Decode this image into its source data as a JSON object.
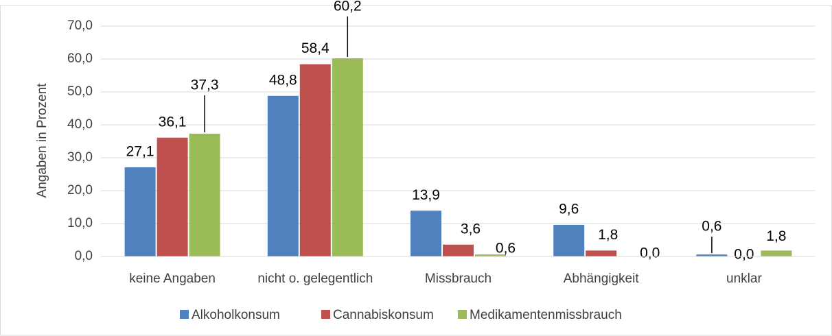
{
  "chart_data": {
    "type": "bar",
    "y_label": "Angaben in Prozent",
    "categories": [
      "keine Angaben",
      "nicht o. gelegentlich",
      "Missbrauch",
      "Abhängigkeit",
      "unklar"
    ],
    "series": [
      {
        "name": "Alkoholkonsum",
        "color": "#4f81bd",
        "values": [
          27.1,
          48.8,
          13.9,
          9.6,
          0.6
        ],
        "value_labels": [
          "27,1",
          "48,8",
          "13,9",
          "9,6",
          "0,6"
        ]
      },
      {
        "name": "Cannabiskonsum",
        "color": "#c0504d",
        "values": [
          36.1,
          58.4,
          3.6,
          1.8,
          0.0
        ],
        "value_labels": [
          "36,1",
          "58,4",
          "3,6",
          "1,8",
          "0,0"
        ]
      },
      {
        "name": "Medikamentenmissbrauch",
        "color": "#9bbb59",
        "values": [
          37.3,
          60.2,
          0.6,
          0.0,
          1.8
        ],
        "value_labels": [
          "37,3",
          "60,2",
          "0,6",
          "0,0",
          "1,8"
        ]
      }
    ],
    "ylim": [
      0,
      70
    ],
    "yticks": [
      {
        "value": 0,
        "label": "0,0"
      },
      {
        "value": 10,
        "label": "10,0"
      },
      {
        "value": 20,
        "label": "20,0"
      },
      {
        "value": 30,
        "label": "30,0"
      },
      {
        "value": 40,
        "label": "40,0"
      },
      {
        "value": 50,
        "label": "50,0"
      },
      {
        "value": 60,
        "label": "60,0"
      },
      {
        "value": 70,
        "label": "70,0"
      }
    ],
    "grid": true,
    "legend": "bottom"
  }
}
